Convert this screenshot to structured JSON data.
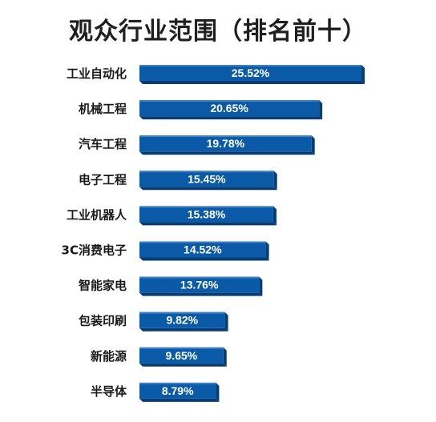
{
  "chart_data": {
    "type": "bar",
    "orientation": "horizontal",
    "title": "观众行业范围（排名前十）",
    "categories": [
      "工业自动化",
      "机械工程",
      "汽车工程",
      "电子工程",
      "工业机器人",
      "3C消费电子",
      "智能家电",
      "包装印刷",
      "新能源",
      "半导体"
    ],
    "values": [
      25.52,
      20.65,
      19.78,
      15.45,
      15.38,
      14.52,
      13.76,
      9.82,
      9.65,
      8.79
    ],
    "value_labels": [
      "25.52%",
      "20.65%",
      "19.78%",
      "15.45%",
      "15.38%",
      "14.52%",
      "13.76%",
      "9.82%",
      "9.65%",
      "8.79%"
    ],
    "unit": "%",
    "grid": false,
    "legend": "none",
    "bar_color": "#0b5aa8",
    "bar_side_color": "#083d73",
    "bar_top_color": "#3d7fc4"
  }
}
